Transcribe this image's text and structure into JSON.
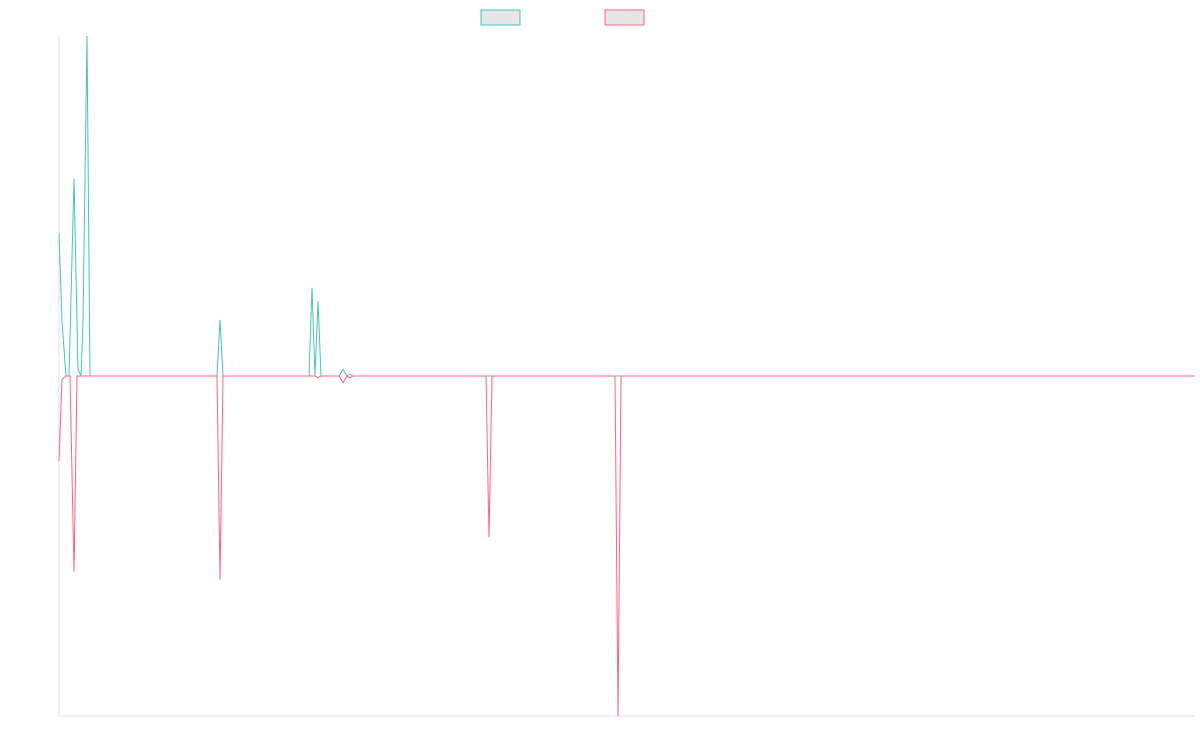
{
  "chart_data": {
    "type": "line",
    "title": "",
    "xlabel": "",
    "ylabel": "",
    "grid": false,
    "legend_position": "top-center",
    "ylim": [
      -1,
      1
    ],
    "x_count": 1136,
    "series": [
      {
        "legend_label": "",
        "color": "#4bc0c0",
        "fill": "#e6e6e6",
        "points": [
          [
            0,
            0.42
          ],
          [
            3,
            0.16
          ],
          [
            7,
            0.0
          ],
          [
            10,
            0.0
          ],
          [
            15,
            0.58
          ],
          [
            19,
            0.02
          ],
          [
            22,
            0.0
          ],
          [
            24,
            0.16
          ],
          [
            28,
            1.0
          ],
          [
            31,
            0.0
          ],
          [
            158,
            0.0
          ],
          [
            161,
            0.165
          ],
          [
            164,
            0.0
          ],
          [
            250,
            0.0
          ],
          [
            253,
            0.26
          ],
          [
            256,
            0.0
          ],
          [
            259,
            0.22
          ],
          [
            262,
            0.0
          ],
          [
            280,
            0.0
          ],
          [
            284,
            0.02
          ],
          [
            288,
            0.0
          ],
          [
            291,
            0.005
          ],
          [
            294,
            0.0
          ],
          [
            1136,
            0.0
          ]
        ]
      },
      {
        "legend_label": "",
        "color": "#ff6384",
        "fill": "#e6e6e6",
        "points": [
          [
            0,
            -0.25
          ],
          [
            3,
            -0.01
          ],
          [
            7,
            0.0
          ],
          [
            11,
            0.0
          ],
          [
            15,
            -0.575
          ],
          [
            18,
            0.0
          ],
          [
            158,
            0.0
          ],
          [
            161,
            -0.6
          ],
          [
            164,
            0.0
          ],
          [
            256,
            0.0
          ],
          [
            259,
            -0.005
          ],
          [
            262,
            0.0
          ],
          [
            280,
            0.0
          ],
          [
            284,
            -0.02
          ],
          [
            288,
            0.0
          ],
          [
            291,
            -0.005
          ],
          [
            294,
            0.0
          ],
          [
            427,
            0.0
          ],
          [
            430,
            -0.475
          ],
          [
            433,
            0.0
          ],
          [
            556,
            0.0
          ],
          [
            559,
            -1.0
          ],
          [
            562,
            0.0
          ],
          [
            1136,
            0.0
          ]
        ]
      }
    ]
  }
}
